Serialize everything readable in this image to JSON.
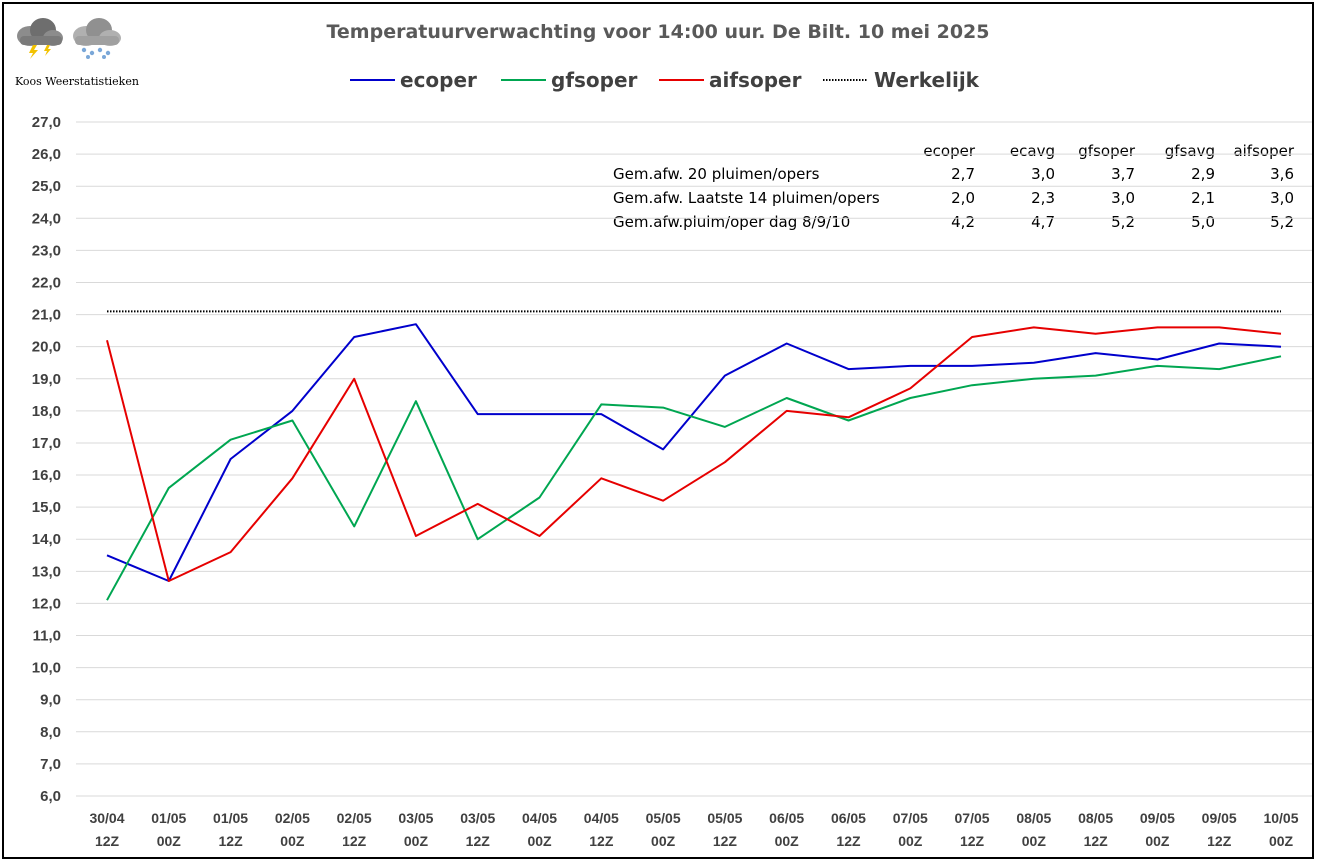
{
  "brand": {
    "name": "Koos Weerstatistieken"
  },
  "chart_data": {
    "type": "line",
    "title": "Temperatuurverwachting voor 14:00 uur. De Bilt. 10 mei 2025",
    "categories_line1": [
      "30/04",
      "01/05",
      "01/05",
      "02/05",
      "02/05",
      "03/05",
      "03/05",
      "04/05",
      "04/05",
      "05/05",
      "05/05",
      "06/05",
      "06/05",
      "07/05",
      "07/05",
      "08/05",
      "08/05",
      "09/05",
      "09/05",
      "10/05"
    ],
    "categories_line2": [
      "12Z",
      "00Z",
      "12Z",
      "00Z",
      "12Z",
      "00Z",
      "12Z",
      "00Z",
      "12Z",
      "00Z",
      "12Z",
      "00Z",
      "12Z",
      "00Z",
      "12Z",
      "00Z",
      "12Z",
      "00Z",
      "12Z",
      "00Z"
    ],
    "ylim": [
      6,
      27
    ],
    "ytick_labels": [
      "6,0",
      "7,0",
      "8,0",
      "9,0",
      "10,0",
      "11,0",
      "12,0",
      "13,0",
      "14,0",
      "15,0",
      "16,0",
      "17,0",
      "18,0",
      "19,0",
      "20,0",
      "21,0",
      "22,0",
      "23,0",
      "24,0",
      "25,0",
      "26,0",
      "27,0"
    ],
    "grid": true,
    "legend_position": "top",
    "series": [
      {
        "name": "ecoper",
        "color": "#0000cc",
        "values": [
          13.5,
          12.7,
          16.5,
          18.0,
          20.3,
          20.7,
          17.9,
          17.9,
          17.9,
          16.8,
          19.1,
          20.1,
          19.3,
          19.4,
          19.4,
          19.5,
          19.8,
          19.6,
          20.1,
          20.0
        ]
      },
      {
        "name": "gfsoper",
        "color": "#00a651",
        "values": [
          12.1,
          15.6,
          17.1,
          17.7,
          14.4,
          18.3,
          14.0,
          15.3,
          18.2,
          18.1,
          17.5,
          18.4,
          17.7,
          18.4,
          18.8,
          19.0,
          19.1,
          19.4,
          19.3,
          19.7
        ]
      },
      {
        "name": "aifsoper",
        "color": "#e60000",
        "values": [
          20.2,
          12.7,
          13.6,
          15.9,
          19.0,
          14.1,
          15.1,
          14.1,
          15.9,
          15.2,
          16.4,
          18.0,
          17.8,
          18.7,
          20.3,
          20.6,
          20.4,
          20.6,
          20.6,
          20.4
        ]
      }
    ],
    "reference": {
      "name": "Werkelijk",
      "value": 21.1,
      "color": "#000000"
    }
  },
  "stats_table": {
    "headers": [
      "ecoper",
      "ecavg",
      "gfsoper",
      "gfsavg",
      "aifsoper"
    ],
    "rows": [
      {
        "label": "Gem.afw. 20 pluimen/opers",
        "values": [
          "2,7",
          "3,0",
          "3,7",
          "2,9",
          "3,6"
        ]
      },
      {
        "label": "Gem.afw. Laatste 14 pluimen/opers",
        "values": [
          "2,0",
          "2,3",
          "3,0",
          "2,1",
          "3,0"
        ]
      },
      {
        "label": "Gem.afw.pluim/oper dag 8/9/10",
        "values": [
          "4,2",
          "4,7",
          "5,2",
          "5,0",
          "5,2"
        ]
      }
    ]
  },
  "icons": [
    "thunderstorm-cloud-icon",
    "sleet-cloud-icon"
  ]
}
